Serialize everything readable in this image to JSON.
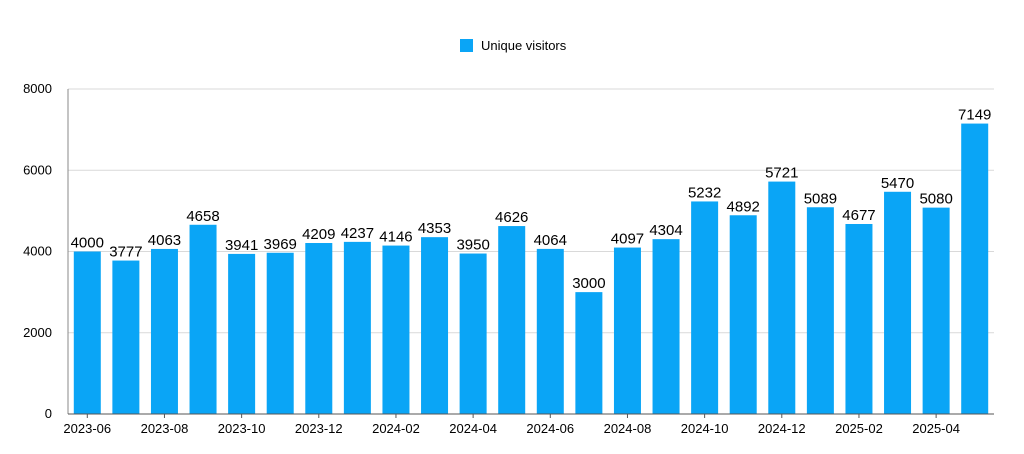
{
  "chart_data": {
    "type": "bar",
    "categories": [
      "2023-06",
      "2023-07",
      "2023-08",
      "2023-09",
      "2023-10",
      "2023-11",
      "2023-12",
      "2024-01",
      "2024-02",
      "2024-03",
      "2024-04",
      "2024-05",
      "2024-06",
      "2024-07",
      "2024-08",
      "2024-09",
      "2024-10",
      "2024-11",
      "2024-12",
      "2025-01",
      "2025-02",
      "2025-03",
      "2025-04",
      "2025-05"
    ],
    "x_tick_labels": [
      "2023-06",
      "2023-08",
      "2023-10",
      "2023-12",
      "2024-02",
      "2024-04",
      "2024-06",
      "2024-08",
      "2024-10",
      "2024-12",
      "2025-02",
      "2025-04"
    ],
    "series": [
      {
        "name": "Unique visitors",
        "color": "#0aa5f6",
        "values": [
          4000,
          3777,
          4063,
          4658,
          3941,
          3969,
          4209,
          4237,
          4146,
          4353,
          3950,
          4626,
          4064,
          3000,
          4097,
          4304,
          5232,
          4892,
          5721,
          5089,
          4677,
          5470,
          5080,
          7149
        ]
      }
    ],
    "yticks": [
      0,
      2000,
      4000,
      6000,
      8000
    ],
    "ylim": [
      0,
      8000
    ],
    "grid": true,
    "legend_position": "top-center"
  }
}
